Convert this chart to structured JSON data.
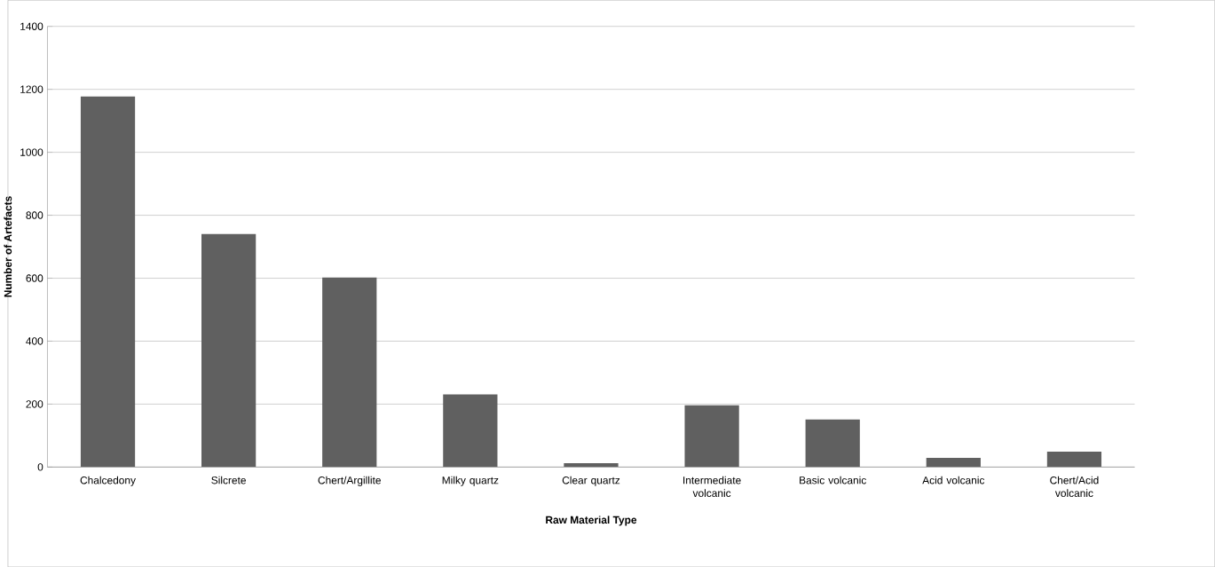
{
  "chart_data": {
    "type": "bar",
    "xlabel": "Raw Material Type",
    "ylabel": "Number of Artefacts",
    "categories": [
      "Chalcedony",
      "Silcrete",
      "Chert/Argillite",
      "Milky quartz",
      "Clear quartz",
      "Intermediate volcanic",
      "Basic volcanic",
      "Acid volcanic",
      "Chert/Acid volcanic"
    ],
    "values": [
      1177,
      740,
      602,
      231,
      12,
      196,
      151,
      29,
      49
    ],
    "color": "#606060",
    "ylim": [
      0,
      1400
    ],
    "yticks": [
      0,
      200,
      400,
      600,
      800,
      1000,
      1200,
      1400
    ],
    "grid": "y"
  }
}
